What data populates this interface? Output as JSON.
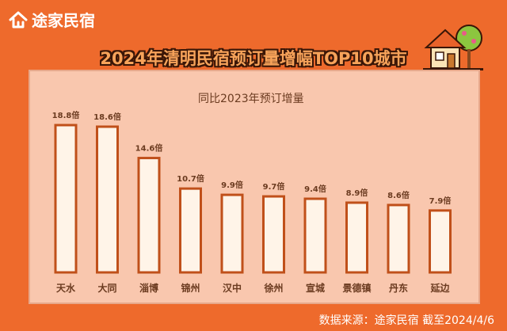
{
  "brand": {
    "name": "途家民宿"
  },
  "icons": {
    "brand": "house-logo-icon",
    "decoration": "house-tree-icon"
  },
  "colors": {
    "background": "#ee6a2c",
    "bar_fill": "#fff4e8",
    "bar_stroke": "#c0501a",
    "text_dark": "#6b3b20"
  },
  "footer": {
    "source": "数据来源：途家民宿  截至2024/4/6"
  },
  "chart_data": {
    "type": "bar",
    "title": "2024年清明民宿预订量增幅TOP10城市",
    "subtitle": "同比2023年预订增量",
    "categories": [
      "天水",
      "大同",
      "淄博",
      "锦州",
      "汉中",
      "徐州",
      "宣城",
      "景德镇",
      "丹东",
      "延边"
    ],
    "values": [
      18.8,
      18.6,
      14.6,
      10.7,
      9.9,
      9.7,
      9.4,
      8.9,
      8.6,
      7.9
    ],
    "data_labels": [
      "18.8倍",
      "18.6倍",
      "14.6倍",
      "10.7倍",
      "9.9倍",
      "9.7倍",
      "9.4倍",
      "8.9倍",
      "8.6倍",
      "7.9倍"
    ],
    "xlabel": "",
    "ylabel": "",
    "ylim": [
      0,
      18.8
    ],
    "grid": false,
    "legend": "none"
  }
}
